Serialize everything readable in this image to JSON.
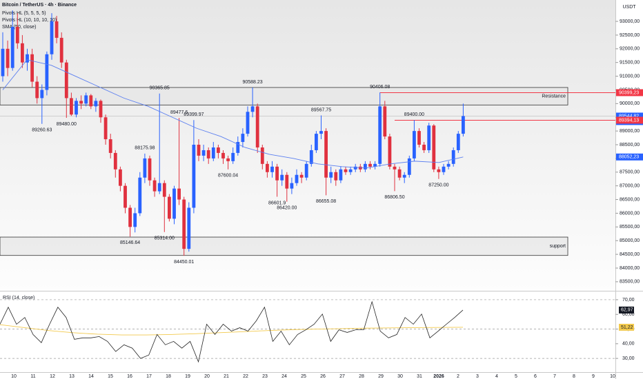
{
  "header": {
    "symbol": "Bitcoin / TetherUS · 4h · Binance",
    "indicators": [
      "Pivots HL (5, 5, 5, 5)",
      "Pivots HL (10, 10, 10, 10)",
      "SMA (50, close)"
    ],
    "currency": "USDT"
  },
  "chart_data": [
    {
      "type": "candlestick",
      "up_color": "#2962ff",
      "down_color": "#e0313f",
      "ylim": [
        83170,
        93780
      ],
      "yticks": [
        {
          "value": 83500,
          "label": "83500,00"
        },
        {
          "value": 84000,
          "label": "84000,00"
        },
        {
          "value": 84500,
          "label": "84500,00"
        },
        {
          "value": 85000,
          "label": "85000,00"
        },
        {
          "value": 85500,
          "label": "85500,00"
        },
        {
          "value": 86000,
          "label": "86000,00"
        },
        {
          "value": 86500,
          "label": "86500,00"
        },
        {
          "value": 87000,
          "label": "87000,00"
        },
        {
          "value": 87500,
          "label": "87500,00"
        },
        {
          "value": 88000,
          "label": "88000,00"
        },
        {
          "value": 88500,
          "label": "88500,00"
        },
        {
          "value": 89000,
          "label": "89000,00"
        },
        {
          "value": 89500,
          "label": "89500,00"
        },
        {
          "value": 90000,
          "label": "90000,00"
        },
        {
          "value": 90500,
          "label": "90500,00"
        },
        {
          "value": 91000,
          "label": "91000,00"
        },
        {
          "value": 91500,
          "label": "91500,00"
        },
        {
          "value": 92000,
          "label": "92000,00"
        },
        {
          "value": 92500,
          "label": "92500,00"
        },
        {
          "value": 93000,
          "label": "93000,00"
        }
      ],
      "candles": [
        [
          91000,
          92600,
          90800,
          92000
        ],
        [
          92000,
          92300,
          91000,
          91300
        ],
        [
          91300,
          93400,
          91200,
          92800
        ],
        [
          92800,
          93300,
          92000,
          92200
        ],
        [
          92200,
          92500,
          91300,
          91500
        ],
        [
          91500,
          92000,
          91200,
          91800
        ],
        [
          91800,
          92000,
          90600,
          90800
        ],
        [
          90800,
          91000,
          90000,
          90200
        ],
        [
          90200,
          90700,
          89260.63,
          90500
        ],
        [
          90500,
          91900,
          90300,
          91800
        ],
        [
          91800,
          93300,
          91600,
          93000
        ],
        [
          93000,
          93200,
          92200,
          92400
        ],
        [
          92400,
          92600,
          91300,
          91500
        ],
        [
          91500,
          91600,
          89480,
          90200
        ],
        [
          90200,
          90400,
          89550,
          89600
        ],
        [
          89600,
          90200,
          89500,
          90100
        ],
        [
          90100,
          90300,
          89800,
          90000
        ],
        [
          90000,
          90400,
          89900,
          90300
        ],
        [
          90300,
          90350,
          89800,
          89900
        ],
        [
          89900,
          90200,
          89700,
          90100
        ],
        [
          90100,
          90150,
          89300,
          89500
        ],
        [
          89500,
          89600,
          88500,
          88700
        ],
        [
          88700,
          88900,
          88000,
          88200
        ],
        [
          88200,
          88300,
          87300,
          87600
        ],
        [
          87600,
          87700,
          86800,
          87000
        ],
        [
          87000,
          87100,
          86000,
          86200
        ],
        [
          86200,
          86300,
          85146.64,
          85500
        ],
        [
          85500,
          86200,
          85300,
          86000
        ],
        [
          86000,
          87500,
          85900,
          87300
        ],
        [
          87300,
          88175.98,
          87100,
          88000
        ],
        [
          88000,
          88100,
          87000,
          87200
        ],
        [
          87200,
          87300,
          86600,
          86800
        ],
        [
          86800,
          90365.85,
          86700,
          87100
        ],
        [
          87100,
          87200,
          85314,
          86600
        ],
        [
          86600,
          86700,
          85700,
          85800
        ],
        [
          85800,
          87000,
          85600,
          86900
        ],
        [
          86900,
          89477.6,
          86300,
          86500
        ],
        [
          86500,
          86600,
          84450.01,
          84700
        ],
        [
          84700,
          86400,
          84600,
          86200
        ],
        [
          86200,
          89399.97,
          86000,
          88500
        ],
        [
          88500,
          88700,
          87900,
          88100
        ],
        [
          88100,
          88500,
          87900,
          88300
        ],
        [
          88300,
          88400,
          87800,
          88000
        ],
        [
          88000,
          88600,
          87900,
          88400
        ],
        [
          88400,
          88500,
          88000,
          88200
        ],
        [
          88200,
          88300,
          87800,
          88000
        ],
        [
          88000,
          88100,
          87600.04,
          87900
        ],
        [
          87900,
          88400,
          87800,
          88200
        ],
        [
          88200,
          88800,
          88100,
          88600
        ],
        [
          88600,
          89100,
          88400,
          88900
        ],
        [
          88900,
          89900,
          88800,
          89700
        ],
        [
          89700,
          90588.23,
          89500,
          89900
        ],
        [
          89900,
          90000,
          88200,
          88400
        ],
        [
          88400,
          88500,
          87600,
          87800
        ],
        [
          87800,
          87900,
          87300,
          87500
        ],
        [
          87500,
          87900,
          87300,
          87700
        ],
        [
          87700,
          87800,
          86601.9,
          87200
        ],
        [
          87200,
          87600,
          87000,
          87400
        ],
        [
          87400,
          87500,
          86420,
          86900
        ],
        [
          86900,
          87300,
          86700,
          87100
        ],
        [
          87100,
          87600,
          87000,
          87400
        ],
        [
          87400,
          87500,
          87100,
          87300
        ],
        [
          87300,
          87900,
          87200,
          87800
        ],
        [
          87800,
          88500,
          87700,
          88300
        ],
        [
          88300,
          89000,
          88200,
          88900
        ],
        [
          88900,
          89567.75,
          88700,
          89000
        ],
        [
          89000,
          89100,
          86655.08,
          87300
        ],
        [
          87300,
          87700,
          87100,
          87500
        ],
        [
          87500,
          87600,
          87000,
          87200
        ],
        [
          87200,
          87700,
          87100,
          87600
        ],
        [
          87600,
          87700,
          87400,
          87500
        ],
        [
          87500,
          87700,
          87400,
          87600
        ],
        [
          87600,
          87800,
          87500,
          87700
        ],
        [
          87700,
          87800,
          87500,
          87600
        ],
        [
          87600,
          87900,
          87500,
          87800
        ],
        [
          87800,
          87900,
          87600,
          87700
        ],
        [
          87700,
          87900,
          87600,
          87800
        ],
        [
          87800,
          90406.08,
          87700,
          89900
        ],
        [
          89900,
          90100,
          88700,
          88800
        ],
        [
          88800,
          88900,
          87600,
          87700
        ],
        [
          87700,
          87800,
          86806.5,
          87600
        ],
        [
          87600,
          87700,
          87200,
          87300
        ],
        [
          87300,
          87500,
          87100,
          87400
        ],
        [
          87400,
          88100,
          87300,
          88000
        ],
        [
          88000,
          89400,
          87900,
          89000
        ],
        [
          89000,
          89100,
          88400,
          88500
        ],
        [
          88500,
          88600,
          88200,
          88300
        ],
        [
          88300,
          89300,
          88200,
          89200
        ],
        [
          89200,
          89250,
          87500,
          87600
        ],
        [
          87600,
          87700,
          87250,
          87500
        ],
        [
          87500,
          87800,
          87400,
          87700
        ],
        [
          87700,
          87900,
          87600,
          87800
        ],
        [
          87800,
          88400,
          87700,
          88300
        ],
        [
          88300,
          89000,
          88200,
          88900
        ],
        [
          88900,
          90000,
          88800,
          89544.82
        ]
      ],
      "ma": {
        "color": "#5b7ff0",
        "values": [
          90500,
          91600,
          91400,
          91000,
          90600,
          90200,
          89900,
          89500,
          89100,
          88800,
          88400,
          88150,
          88000,
          87800,
          87700,
          87650,
          87800,
          87900,
          87850,
          88052.23
        ]
      },
      "pivots": [
        {
          "value": 89260.63,
          "label": "89260.63"
        },
        {
          "value": 89480,
          "label": "89480.00"
        },
        {
          "value": 88175.98,
          "label": "88175.98"
        },
        {
          "value": 85146.64,
          "label": "85146.64"
        },
        {
          "value": 90365.85,
          "label": "90365.85"
        },
        {
          "value": 85314,
          "label": "85314.00"
        },
        {
          "value": 89477.6,
          "label": "89477.6"
        },
        {
          "value": 84450.01,
          "label": "84450.01"
        },
        {
          "value": 89399.97,
          "label": "89399.97"
        },
        {
          "value": 87600.04,
          "label": "87600.04"
        },
        {
          "value": 90588.23,
          "label": "90588.23"
        },
        {
          "value": 86601.9,
          "label": "86601.9"
        },
        {
          "value": 86420,
          "label": "86420.00"
        },
        {
          "value": 89567.75,
          "label": "89567.75"
        },
        {
          "value": 86655.08,
          "label": "86655.08"
        },
        {
          "value": 90406.08,
          "label": "90406.08"
        },
        {
          "value": 86806.5,
          "label": "86806.50"
        },
        {
          "value": 89400,
          "label": "89400.00"
        },
        {
          "value": 87250,
          "label": "87250.00"
        }
      ],
      "zones": [
        {
          "label": "Resistance",
          "top": 90588,
          "bottom": 89950
        },
        {
          "label": "support",
          "top": 85130,
          "bottom": 84460
        }
      ],
      "price_labels": [
        {
          "value": 90399.23,
          "label": "90399,23",
          "color": "#f23645"
        },
        {
          "value": 89544.82,
          "label": "89544,82",
          "sublabel": "04:50",
          "color": "#2962ff"
        },
        {
          "value": 89394.13,
          "label": "89394,13",
          "color": "#f23645"
        },
        {
          "value": 88052.23,
          "label": "88052,23",
          "color": "#2962ff"
        }
      ]
    },
    {
      "type": "line",
      "title": "RSI (14, close)",
      "color": "#222222",
      "ylim": [
        20.2,
        75.6
      ],
      "yticks": [
        {
          "value": 30,
          "label": "30,00"
        },
        {
          "value": 40,
          "label": "40,00"
        },
        {
          "value": 50,
          "label": "50,00"
        },
        {
          "value": 60,
          "label": "60,00"
        },
        {
          "value": 70,
          "label": "70,00"
        }
      ],
      "levels": [
        70,
        50,
        30
      ],
      "values": [
        53.3,
        64.9,
        53.3,
        57.9,
        46.3,
        40.7,
        53.3,
        64.9,
        57.9,
        43,
        44,
        44,
        44.9,
        41.6,
        34.7,
        39.3,
        37,
        30,
        32.3,
        46.3,
        39.3,
        41.6,
        37,
        41.6,
        27.7,
        53.3,
        46.3,
        53.3,
        48.6,
        50.9,
        48.6,
        55.6,
        64.9,
        41.6,
        48.6,
        39.3,
        46.3,
        49.5,
        53.3,
        60.2,
        41.6,
        49.5,
        47.7,
        49.5,
        49.5,
        68.6,
        48.6,
        44,
        46.3,
        57.9,
        53.3,
        60.2,
        44,
        48.6,
        53.3,
        57.9,
        62.97
      ],
      "ma": {
        "color": "#f2c94c",
        "values": [
          53,
          51,
          49,
          47.5,
          46.5,
          46,
          46,
          46.3,
          46.8,
          47.5,
          48.2,
          49,
          49.6,
          50,
          50.3,
          50.6,
          50.8,
          51,
          51.1,
          51.22
        ]
      },
      "current": [
        {
          "value": 62.97,
          "label": "62,97",
          "color": "#131722"
        },
        {
          "value": 51.22,
          "label": "51,22",
          "color": "#f2c94c"
        }
      ],
      "x_labels": [
        "10",
        "11",
        "12",
        "13",
        "14",
        "15",
        "16",
        "17",
        "18",
        "19",
        "20",
        "21",
        "22",
        "23",
        "24",
        "25",
        "26",
        "27",
        "28",
        "29",
        "30",
        "31",
        "2026",
        "2",
        "3",
        "4",
        "5",
        "6",
        "7",
        "8",
        "9",
        "10"
      ]
    }
  ]
}
